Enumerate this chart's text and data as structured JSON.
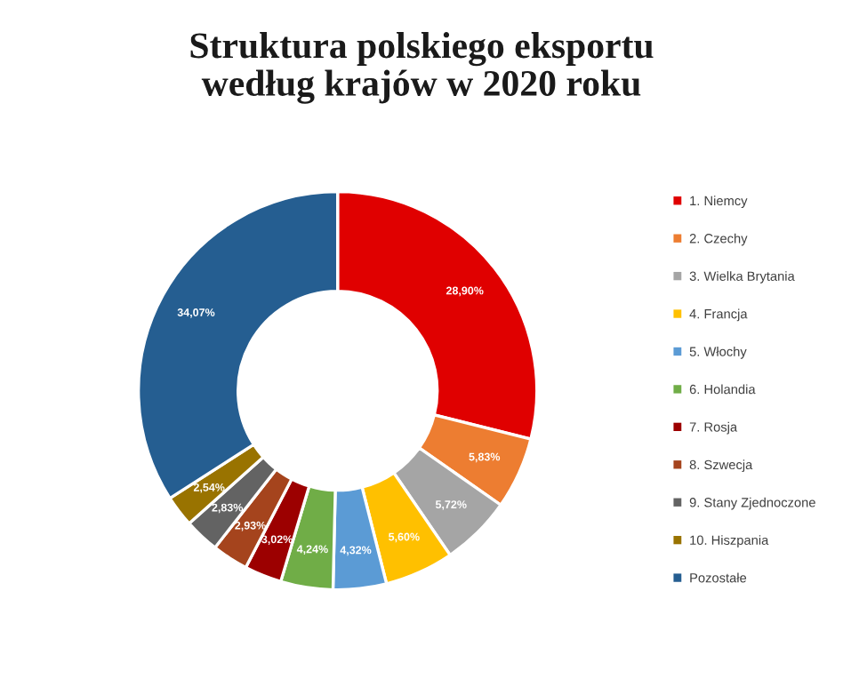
{
  "chart_data": {
    "type": "donut",
    "title": "Struktura polskiego eksportu\nwedług krajów w 2020 roku",
    "categories": [
      "1. Niemcy",
      "2. Czechy",
      "3. Wielka Brytania",
      "4. Francja",
      "5. Włochy",
      "6. Holandia",
      "7. Rosja",
      "8. Szwecja",
      "9. Stany Zjednoczone",
      "10. Hiszpania",
      "Pozostałe"
    ],
    "values": [
      28.9,
      5.83,
      5.72,
      5.6,
      4.32,
      4.24,
      3.02,
      2.93,
      2.83,
      2.54,
      34.07
    ],
    "value_labels": [
      "28,90%",
      "5,83%",
      "5,72%",
      "5,60%",
      "4,32%",
      "4,24%",
      "3,02%",
      "2,93%",
      "2,83%",
      "2,54%",
      "34,07%"
    ],
    "colors": [
      "#e00000",
      "#ed7d31",
      "#a5a5a5",
      "#ffc000",
      "#5b9bd5",
      "#70ad47",
      "#9c0000",
      "#a5441d",
      "#636363",
      "#997300",
      "#255e91"
    ],
    "legend": "right"
  }
}
